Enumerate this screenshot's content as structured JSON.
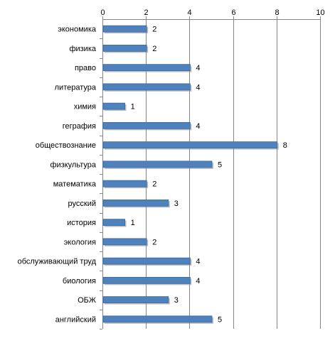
{
  "chart_data": {
    "type": "bar",
    "orientation": "horizontal",
    "categories": [
      "экономика",
      "физика",
      "право",
      "литература",
      "химия",
      "геграфия",
      "обществознание",
      "физкультура",
      "математика",
      "русский",
      "история",
      "экология",
      "обслуживающий труд",
      "биология",
      "ОБЖ",
      "английский"
    ],
    "values": [
      2,
      2,
      4,
      4,
      1,
      4,
      8,
      5,
      2,
      3,
      1,
      2,
      4,
      4,
      3,
      5
    ],
    "xlim": [
      0,
      10
    ],
    "xticks": [
      0,
      2,
      4,
      6,
      8,
      10
    ],
    "x_axis_position": "top",
    "grid": true,
    "legend": "none",
    "data_labels": true,
    "colors": {
      "bar_fill": "#4f81bd",
      "bar_stroke": "#3a6aa0",
      "bar_shadow": "#8c8c8c",
      "gridline": "#878787",
      "axis": "#878787",
      "text": "#000000"
    }
  }
}
